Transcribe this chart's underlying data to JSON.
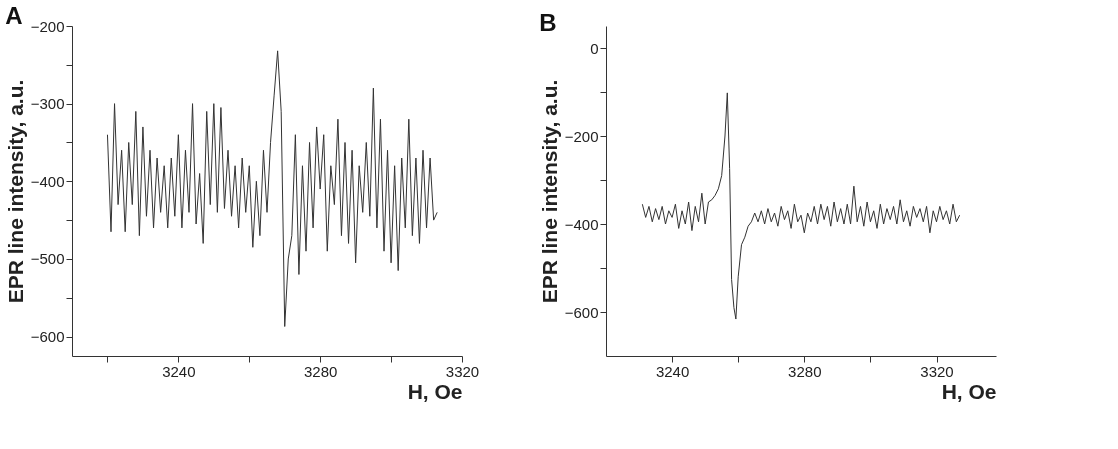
{
  "chart_data": [
    {
      "type": "line",
      "title": "A",
      "xlabel": "H, Oe",
      "ylabel": "EPR line intensity, a.u.",
      "xlim": [
        3210,
        3320
      ],
      "ylim": [
        -625,
        -200
      ],
      "xticks": [
        {
          "value": 3220,
          "label": null
        },
        3240,
        {
          "value": 3260,
          "label": null
        },
        3280,
        {
          "value": 3300,
          "label": null
        },
        3320
      ],
      "yticks": [
        -600,
        {
          "value": -550,
          "label": null
        },
        -500,
        {
          "value": -450,
          "label": null
        },
        -400,
        {
          "value": -350,
          "label": null
        },
        -300,
        {
          "value": -250,
          "label": null
        },
        -200
      ],
      "grid": false,
      "x": [
        3220,
        3221,
        3222,
        3223,
        3224,
        3225,
        3226,
        3227,
        3228,
        3229,
        3230,
        3231,
        3232,
        3233,
        3234,
        3235,
        3236,
        3237,
        3238,
        3239,
        3240,
        3241,
        3242,
        3243,
        3244,
        3245,
        3246,
        3247,
        3248,
        3249,
        3250,
        3251,
        3252,
        3253,
        3254,
        3255,
        3256,
        3257,
        3258,
        3259,
        3260,
        3261,
        3262,
        3263,
        3264,
        3265,
        3266,
        3267,
        3268,
        3269,
        3270,
        3271,
        3272,
        3273,
        3274,
        3275,
        3276,
        3277,
        3278,
        3279,
        3280,
        3281,
        3282,
        3283,
        3284,
        3285,
        3286,
        3287,
        3288,
        3289,
        3290,
        3291,
        3292,
        3293,
        3294,
        3295,
        3296,
        3297,
        3298,
        3299,
        3300,
        3301,
        3302,
        3303,
        3304,
        3305,
        3306,
        3307,
        3308,
        3309,
        3310,
        3311,
        3312,
        3313
      ],
      "series": [
        {
          "color": "#333333",
          "values": [
            -340,
            -465,
            -300,
            -430,
            -360,
            -465,
            -350,
            -430,
            -310,
            -470,
            -330,
            -445,
            -360,
            -460,
            -370,
            -440,
            -380,
            -460,
            -370,
            -445,
            -340,
            -460,
            -360,
            -440,
            -300,
            -455,
            -390,
            -480,
            -310,
            -430,
            -300,
            -440,
            -305,
            -435,
            -360,
            -445,
            -380,
            -460,
            -370,
            -440,
            -380,
            -485,
            -400,
            -470,
            -360,
            -440,
            -350,
            -290,
            -232,
            -310,
            -587,
            -500,
            -470,
            -340,
            -520,
            -380,
            -490,
            -350,
            -460,
            -330,
            -410,
            -340,
            -490,
            -380,
            -430,
            -320,
            -470,
            -350,
            -480,
            -360,
            -505,
            -380,
            -440,
            -350,
            -445,
            -280,
            -460,
            -320,
            -490,
            -360,
            -505,
            -380,
            -515,
            -370,
            -460,
            -320,
            -470,
            -370,
            -480,
            -360,
            -460,
            -370,
            -450,
            -440
          ]
        }
      ]
    },
    {
      "type": "line",
      "title": "B",
      "xlabel": "H, Oe",
      "ylabel": "EPR line intensity, a.u.",
      "xlim": [
        3220,
        3338
      ],
      "ylim": [
        -700,
        50
      ],
      "xticks": [
        3240,
        {
          "value": 3260,
          "label": null
        },
        3280,
        {
          "value": 3300,
          "label": null
        },
        3320
      ],
      "yticks": [
        -600,
        {
          "value": -500,
          "label": null
        },
        -400,
        {
          "value": -300,
          "label": null
        },
        -200,
        {
          "value": -100,
          "label": null
        },
        0
      ],
      "grid": false,
      "x": [
        3231,
        3232,
        3233,
        3234,
        3235,
        3236,
        3237,
        3238,
        3239,
        3240,
        3241,
        3242,
        3243,
        3244,
        3245,
        3246,
        3247,
        3248,
        3249,
        3250,
        3251,
        3252,
        3253,
        3254,
        3255,
        3256,
        3256.7,
        3257.4,
        3258,
        3258.7,
        3259.3,
        3260,
        3261,
        3262,
        3263,
        3264,
        3265,
        3266,
        3267,
        3268,
        3269,
        3270,
        3271,
        3272,
        3273,
        3274,
        3275,
        3276,
        3277,
        3278,
        3279,
        3280,
        3281,
        3282,
        3283,
        3284,
        3285,
        3286,
        3287,
        3288,
        3289,
        3290,
        3291,
        3292,
        3293,
        3294,
        3295,
        3296,
        3297,
        3298,
        3299,
        3300,
        3301,
        3302,
        3303,
        3304,
        3305,
        3306,
        3307,
        3308,
        3309,
        3310,
        3311,
        3312,
        3313,
        3314,
        3315,
        3316,
        3317,
        3318,
        3319,
        3320,
        3321,
        3322,
        3323,
        3324,
        3325,
        3326,
        3327
      ],
      "series": [
        {
          "color": "#333333",
          "values": [
            -355,
            -385,
            -360,
            -395,
            -365,
            -390,
            -360,
            -400,
            -370,
            -385,
            -355,
            -410,
            -370,
            -400,
            -350,
            -415,
            -360,
            -395,
            -330,
            -400,
            -350,
            -345,
            -335,
            -320,
            -290,
            -200,
            -102,
            -274,
            -526,
            -590,
            -616,
            -520,
            -447,
            -430,
            -405,
            -395,
            -375,
            -395,
            -370,
            -400,
            -365,
            -395,
            -375,
            -405,
            -360,
            -390,
            -370,
            -410,
            -355,
            -395,
            -380,
            -420,
            -375,
            -395,
            -360,
            -400,
            -355,
            -390,
            -360,
            -405,
            -350,
            -395,
            -365,
            -400,
            -355,
            -400,
            -314,
            -395,
            -360,
            -405,
            -350,
            -395,
            -370,
            -410,
            -355,
            -400,
            -365,
            -390,
            -360,
            -400,
            -345,
            -395,
            -370,
            -405,
            -360,
            -385,
            -365,
            -395,
            -360,
            -420,
            -370,
            -395,
            -360,
            -390,
            -370,
            -400,
            -355,
            -395,
            -380
          ]
        }
      ]
    }
  ]
}
